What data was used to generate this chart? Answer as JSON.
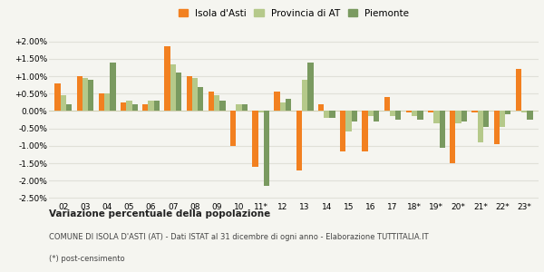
{
  "years": [
    "02",
    "03",
    "04",
    "05",
    "06",
    "07",
    "08",
    "09",
    "10",
    "11*",
    "12",
    "13",
    "14",
    "15",
    "16",
    "17",
    "18*",
    "19*",
    "20*",
    "21*",
    "22*",
    "23*"
  ],
  "isola": [
    0.8,
    1.0,
    0.5,
    0.25,
    0.2,
    1.85,
    1.0,
    0.55,
    -1.0,
    -1.6,
    0.55,
    -1.7,
    0.2,
    -1.15,
    -1.15,
    0.4,
    -0.05,
    -0.05,
    -1.5,
    -0.05,
    -0.95,
    1.2
  ],
  "provincia": [
    0.45,
    0.95,
    0.5,
    0.3,
    0.3,
    1.35,
    0.95,
    0.45,
    0.2,
    -0.05,
    0.25,
    0.9,
    -0.2,
    -0.6,
    -0.15,
    -0.15,
    -0.15,
    -0.35,
    -0.35,
    -0.9,
    -0.45,
    -0.05
  ],
  "piemonte": [
    0.2,
    0.9,
    1.4,
    0.2,
    0.3,
    1.1,
    0.7,
    0.3,
    0.2,
    -2.15,
    0.35,
    1.4,
    -0.2,
    -0.3,
    -0.3,
    -0.25,
    -0.25,
    -1.05,
    -0.3,
    -0.45,
    -0.1,
    -0.25
  ],
  "color_isola": "#f28020",
  "color_provincia": "#b5c98a",
  "color_piemonte": "#7a9a60",
  "bg_color": "#f5f5f0",
  "grid_color": "#e0e0d8",
  "title_bold": "Variazione percentuale della popolazione",
  "subtitle": "COMUNE DI ISOLA D'ASTI (AT) - Dati ISTAT al 31 dicembre di ogni anno - Elaborazione TUTTITALIA.IT",
  "footnote": "(*) post-censimento",
  "legend_labels": [
    "Isola d'Asti",
    "Provincia di AT",
    "Piemonte"
  ],
  "ylim": [
    -2.6,
    2.25
  ],
  "yticks": [
    -2.5,
    -2.0,
    -1.5,
    -1.0,
    -0.5,
    0.0,
    0.5,
    1.0,
    1.5,
    2.0
  ],
  "bar_width": 0.26
}
